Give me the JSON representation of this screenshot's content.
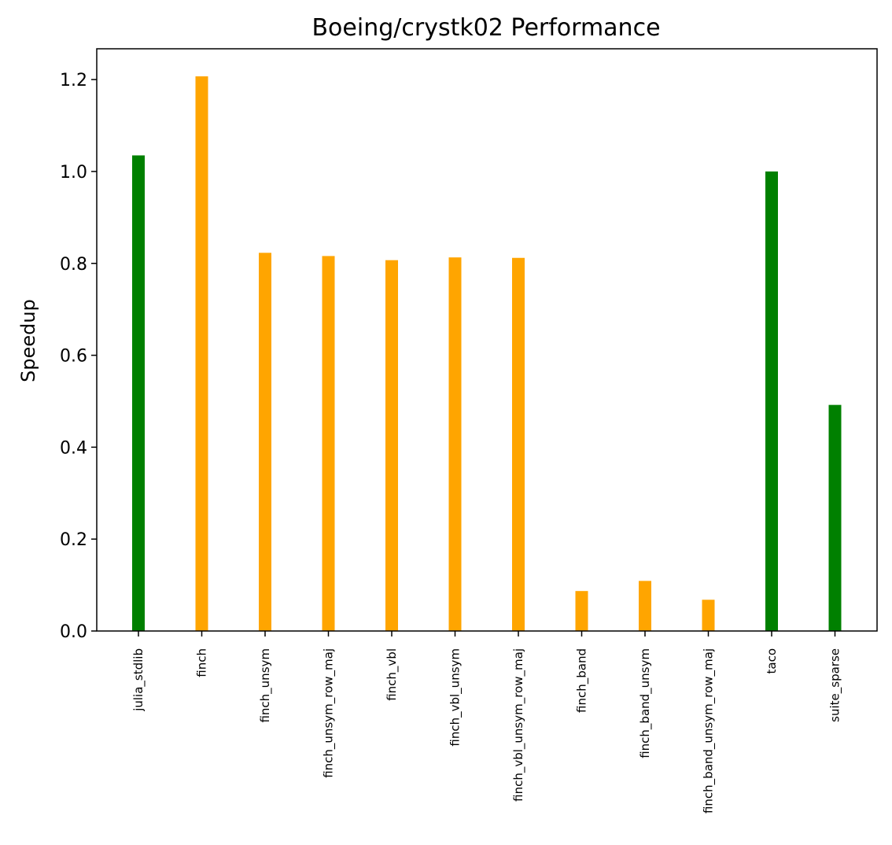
{
  "chart_data": {
    "type": "bar",
    "title": "Boeing/crystk02 Performance",
    "xlabel": "",
    "ylabel": "Speedup",
    "categories": [
      "julia_stdlib",
      "finch",
      "finch_unsym",
      "finch_unsym_row_maj",
      "finch_vbl",
      "finch_vbl_unsym",
      "finch_vbl_unsym_row_maj",
      "finch_band",
      "finch_band_unsym",
      "finch_band_unsym_row_maj",
      "taco",
      "suite_sparse"
    ],
    "values": [
      1.035,
      1.207,
      0.823,
      0.816,
      0.807,
      0.813,
      0.812,
      0.087,
      0.109,
      0.068,
      1.0,
      0.492
    ],
    "bar_colors": [
      "#008000",
      "#FFA500",
      "#FFA500",
      "#FFA500",
      "#FFA500",
      "#FFA500",
      "#FFA500",
      "#FFA500",
      "#FFA500",
      "#FFA500",
      "#008000",
      "#008000"
    ],
    "ylim": [
      0,
      1.267
    ],
    "yticks": [
      0.0,
      0.2,
      0.4,
      0.6,
      0.8,
      1.0,
      1.2
    ],
    "ytick_labels": [
      "0.0",
      "0.2",
      "0.4",
      "0.6",
      "0.8",
      "1.0",
      "1.2"
    ],
    "grid": false,
    "legend": "none"
  }
}
